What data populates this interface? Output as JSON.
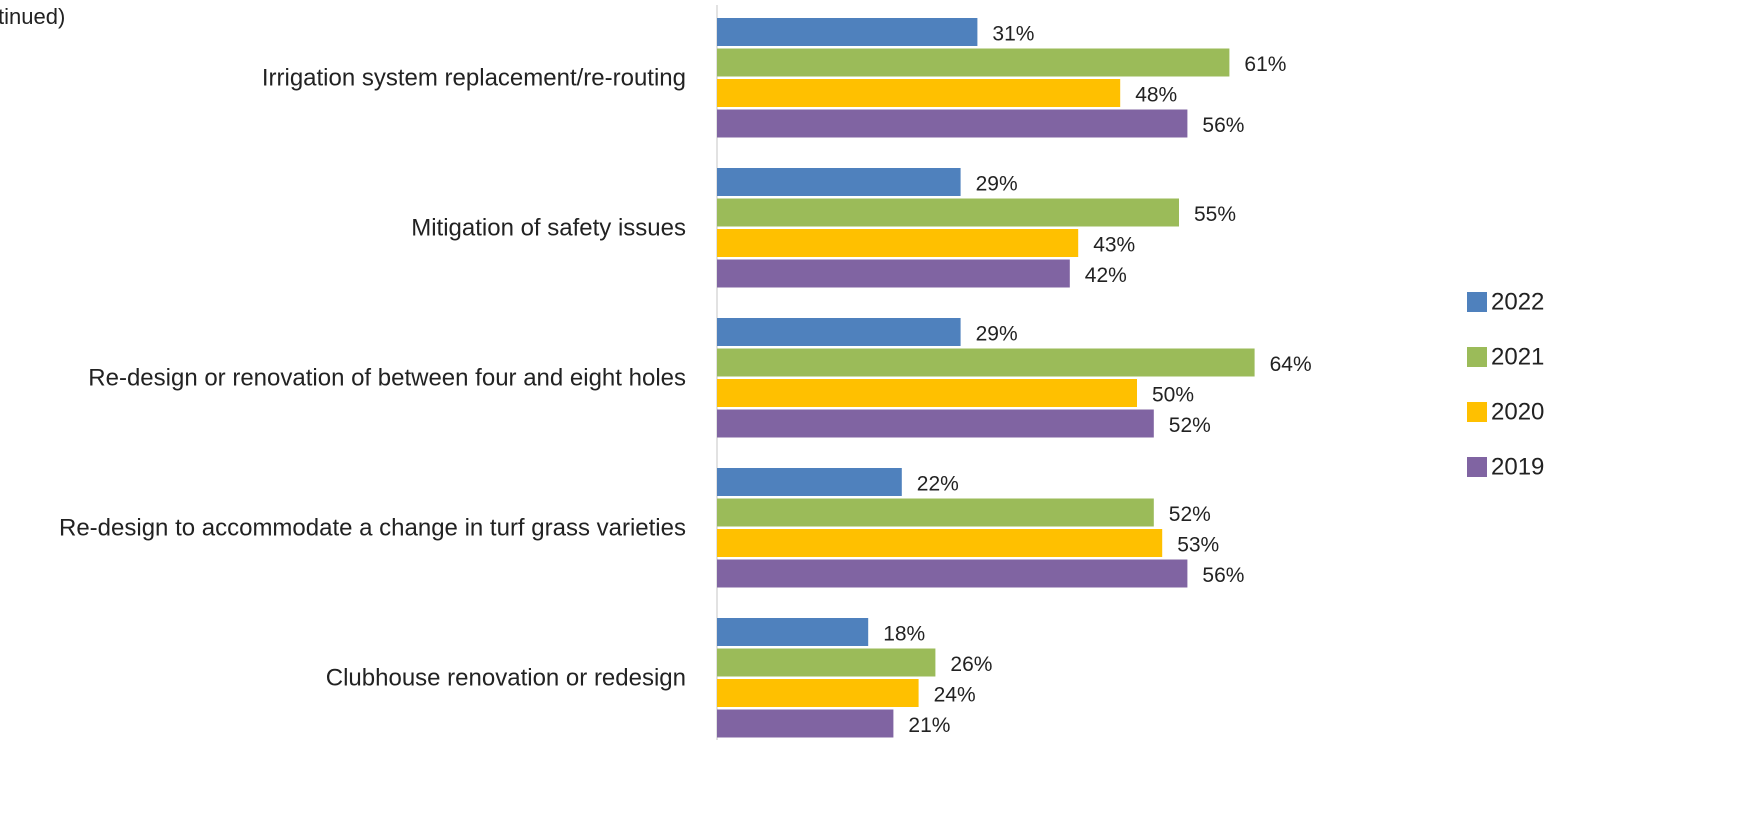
{
  "chart_data": {
    "type": "bar",
    "orientation": "horizontal",
    "title": "tinued)",
    "categories": [
      "Irrigation system replacement/re-routing",
      "Mitigation of safety issues",
      "Re-design or renovation of between four and eight holes",
      "Re-design to accommodate a change in turf grass varieties",
      "Clubhouse renovation or redesign"
    ],
    "series": [
      {
        "name": "2022",
        "color": "#4f81bd",
        "values": [
          31,
          29,
          29,
          22,
          18
        ],
        "value_labels": [
          "31%",
          "29%",
          "29%",
          "22%",
          "18%"
        ]
      },
      {
        "name": "2021",
        "color": "#9bbb59",
        "values": [
          61,
          55,
          64,
          52,
          26
        ],
        "value_labels": [
          "61%",
          "55%",
          "64%",
          "52%",
          "26%"
        ]
      },
      {
        "name": "2020",
        "color": "#ffc000",
        "values": [
          48,
          43,
          50,
          53,
          24
        ],
        "value_labels": [
          "48%",
          "43%",
          "50%",
          "53%",
          "24%"
        ]
      },
      {
        "name": "2019",
        "color": "#8064a2",
        "values": [
          56,
          42,
          52,
          56,
          21
        ],
        "value_labels": [
          "56%",
          "42%",
          "52%",
          "56%",
          "21%"
        ]
      }
    ],
    "xlim": [
      0,
      70
    ],
    "legend": "right"
  }
}
